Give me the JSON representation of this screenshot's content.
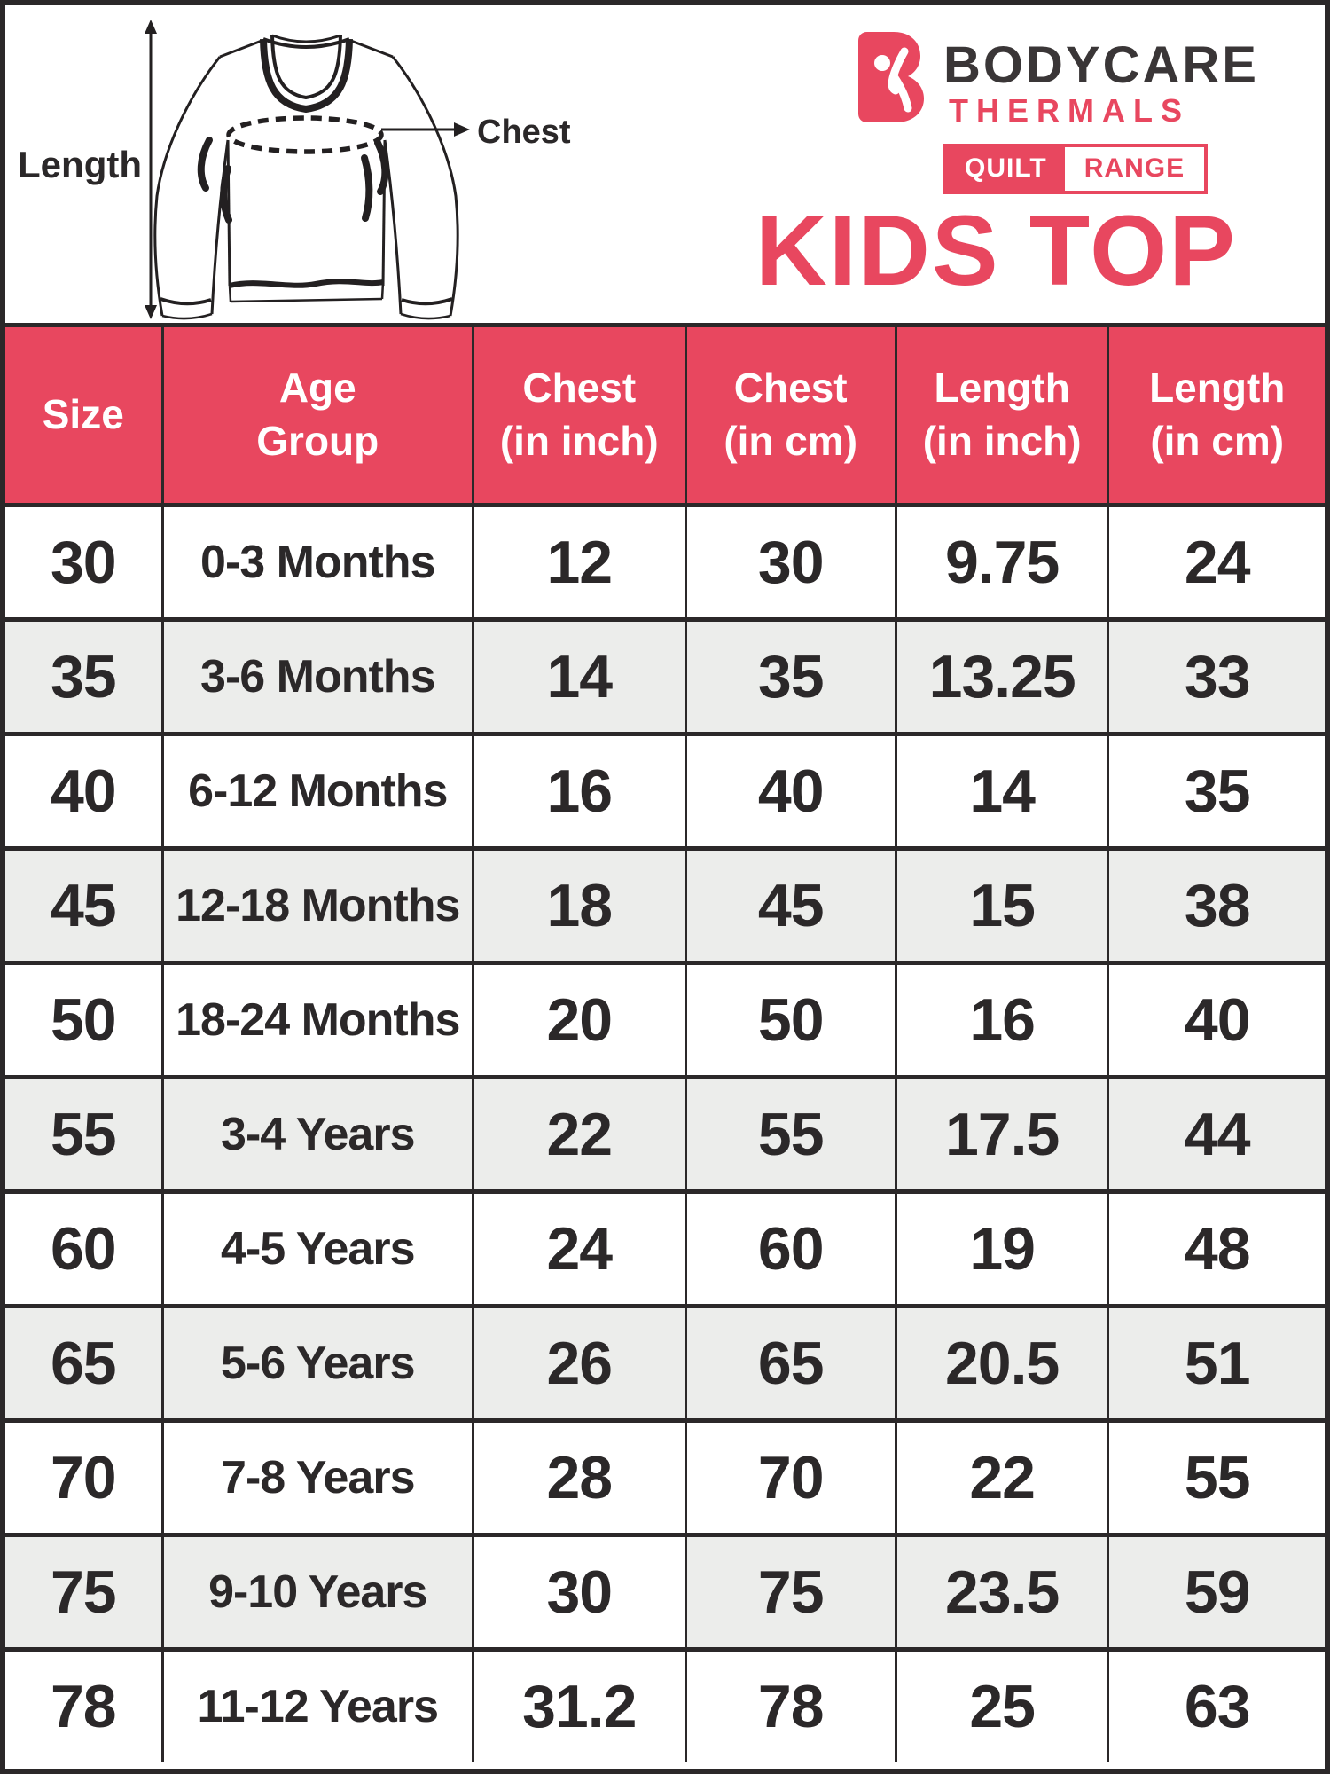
{
  "brand": {
    "logo_icon": "bodycare-b-person-icon",
    "name": "BODYCARE",
    "subtitle": "THERMALS",
    "badge_left": "QUILT",
    "badge_right": "RANGE",
    "product_title": "KIDS TOP"
  },
  "diagram": {
    "length_label": "Length",
    "chest_label": "Chest"
  },
  "colors": {
    "pink": "#E8475F",
    "dark": "#2B2829",
    "brand_dark": "#3A3637",
    "alt_row_bg": "#ECEDEB",
    "header_text": "#FFFFFF"
  },
  "chart_data": {
    "type": "table",
    "title": "KIDS TOP",
    "columns": [
      {
        "line1": "Size",
        "line2": ""
      },
      {
        "line1": "Age",
        "line2": "Group"
      },
      {
        "line1": "Chest",
        "line2": "(in inch)"
      },
      {
        "line1": "Chest",
        "line2": "(in cm)"
      },
      {
        "line1": "Length",
        "line2": "(in inch)"
      },
      {
        "line1": "Length",
        "line2": "(in cm)"
      }
    ],
    "rows": [
      [
        "30",
        "0-3 Months",
        "12",
        "30",
        "9.75",
        "24"
      ],
      [
        "35",
        "3-6 Months",
        "14",
        "35",
        "13.25",
        "33"
      ],
      [
        "40",
        "6-12 Months",
        "16",
        "40",
        "14",
        "35"
      ],
      [
        "45",
        "12-18 Months",
        "18",
        "45",
        "15",
        "38"
      ],
      [
        "50",
        "18-24 Months",
        "20",
        "50",
        "16",
        "40"
      ],
      [
        "55",
        "3-4 Years",
        "22",
        "55",
        "17.5",
        "44"
      ],
      [
        "60",
        "4-5 Years",
        "24",
        "60",
        "19",
        "48"
      ],
      [
        "65",
        "5-6 Years",
        "26",
        "65",
        "20.5",
        "51"
      ],
      [
        "70",
        "7-8 Years",
        "28",
        "70",
        "22",
        "55"
      ],
      [
        "75",
        "9-10 Years",
        "30",
        "75",
        "23.5",
        "59"
      ],
      [
        "78",
        "11-12 Years",
        "31.2",
        "78",
        "25",
        "63"
      ]
    ]
  },
  "table_style": {
    "white_patch_cells": [
      [
        9,
        2
      ]
    ]
  }
}
